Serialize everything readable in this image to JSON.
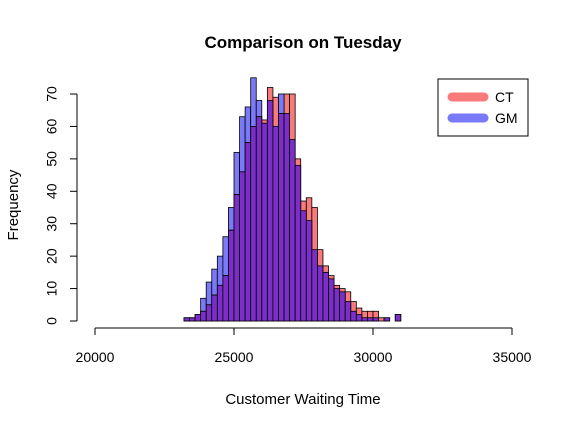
{
  "chart_data": {
    "type": "bar",
    "subtype": "overlaid-histogram",
    "title": "Comparison on Tuesday",
    "xlabel": "Customer Waiting Time",
    "ylabel": "Frequency",
    "xlim": [
      20000,
      35000
    ],
    "ylim": [
      0,
      70
    ],
    "xticks": [
      20000,
      25000,
      30000,
      35000
    ],
    "yticks": [
      0,
      10,
      20,
      30,
      40,
      50,
      60,
      70
    ],
    "bin_width": 200,
    "grid": false,
    "legend": {
      "position": "top-right",
      "entries": [
        {
          "label": "CT",
          "color": "#f87a7a"
        },
        {
          "label": "GM",
          "color": "#7a7af8"
        }
      ]
    },
    "overlap_color": "#7b2fc8",
    "series": [
      {
        "name": "CT",
        "color": "#f87a7a",
        "bins": [
          {
            "x0": 23200,
            "x1": 23400,
            "count": 1
          },
          {
            "x0": 23400,
            "x1": 23600,
            "count": 1
          },
          {
            "x0": 23600,
            "x1": 23800,
            "count": 2
          },
          {
            "x0": 23800,
            "x1": 24000,
            "count": 3
          },
          {
            "x0": 24000,
            "x1": 24200,
            "count": 5
          },
          {
            "x0": 24200,
            "x1": 24400,
            "count": 8
          },
          {
            "x0": 24400,
            "x1": 24600,
            "count": 11
          },
          {
            "x0": 24600,
            "x1": 24800,
            "count": 14
          },
          {
            "x0": 24800,
            "x1": 25000,
            "count": 28
          },
          {
            "x0": 25000,
            "x1": 25200,
            "count": 39
          },
          {
            "x0": 25200,
            "x1": 25400,
            "count": 46
          },
          {
            "x0": 25400,
            "x1": 25600,
            "count": 55
          },
          {
            "x0": 25600,
            "x1": 25800,
            "count": 60
          },
          {
            "x0": 25800,
            "x1": 26000,
            "count": 63
          },
          {
            "x0": 26000,
            "x1": 26200,
            "count": 62
          },
          {
            "x0": 26200,
            "x1": 26400,
            "count": 72
          },
          {
            "x0": 26400,
            "x1": 26600,
            "count": 69
          },
          {
            "x0": 26600,
            "x1": 26800,
            "count": 64
          },
          {
            "x0": 26800,
            "x1": 27000,
            "count": 70
          },
          {
            "x0": 27000,
            "x1": 27200,
            "count": 70
          },
          {
            "x0": 27200,
            "x1": 27400,
            "count": 50
          },
          {
            "x0": 27400,
            "x1": 27600,
            "count": 37
          },
          {
            "x0": 27600,
            "x1": 27800,
            "count": 38
          },
          {
            "x0": 27800,
            "x1": 28000,
            "count": 35
          },
          {
            "x0": 28000,
            "x1": 28200,
            "count": 22
          },
          {
            "x0": 28200,
            "x1": 28400,
            "count": 17
          },
          {
            "x0": 28400,
            "x1": 28600,
            "count": 14
          },
          {
            "x0": 28600,
            "x1": 28800,
            "count": 11
          },
          {
            "x0": 28800,
            "x1": 29000,
            "count": 10
          },
          {
            "x0": 29000,
            "x1": 29200,
            "count": 9
          },
          {
            "x0": 29200,
            "x1": 29400,
            "count": 6
          },
          {
            "x0": 29400,
            "x1": 29600,
            "count": 4
          },
          {
            "x0": 29600,
            "x1": 29800,
            "count": 3
          },
          {
            "x0": 29800,
            "x1": 30000,
            "count": 3
          },
          {
            "x0": 30000,
            "x1": 30200,
            "count": 3
          },
          {
            "x0": 30200,
            "x1": 30400,
            "count": 1
          },
          {
            "x0": 30400,
            "x1": 30600,
            "count": 1
          },
          {
            "x0": 30600,
            "x1": 30800,
            "count": 0
          },
          {
            "x0": 30800,
            "x1": 31000,
            "count": 2
          }
        ]
      },
      {
        "name": "GM",
        "color": "#7a7af8",
        "bins": [
          {
            "x0": 23200,
            "x1": 23400,
            "count": 1
          },
          {
            "x0": 23400,
            "x1": 23600,
            "count": 1
          },
          {
            "x0": 23600,
            "x1": 23800,
            "count": 2
          },
          {
            "x0": 23800,
            "x1": 24000,
            "count": 7
          },
          {
            "x0": 24000,
            "x1": 24200,
            "count": 12
          },
          {
            "x0": 24200,
            "x1": 24400,
            "count": 16
          },
          {
            "x0": 24400,
            "x1": 24600,
            "count": 20
          },
          {
            "x0": 24600,
            "x1": 24800,
            "count": 26
          },
          {
            "x0": 24800,
            "x1": 25000,
            "count": 35
          },
          {
            "x0": 25000,
            "x1": 25200,
            "count": 52
          },
          {
            "x0": 25200,
            "x1": 25400,
            "count": 63
          },
          {
            "x0": 25400,
            "x1": 25600,
            "count": 66
          },
          {
            "x0": 25600,
            "x1": 25800,
            "count": 75
          },
          {
            "x0": 25800,
            "x1": 26000,
            "count": 68
          },
          {
            "x0": 26000,
            "x1": 26200,
            "count": 61
          },
          {
            "x0": 26200,
            "x1": 26400,
            "count": 68
          },
          {
            "x0": 26400,
            "x1": 26600,
            "count": 60
          },
          {
            "x0": 26600,
            "x1": 26800,
            "count": 70
          },
          {
            "x0": 26800,
            "x1": 27000,
            "count": 64
          },
          {
            "x0": 27000,
            "x1": 27200,
            "count": 56
          },
          {
            "x0": 27200,
            "x1": 27400,
            "count": 48
          },
          {
            "x0": 27400,
            "x1": 27600,
            "count": 34
          },
          {
            "x0": 27600,
            "x1": 27800,
            "count": 31
          },
          {
            "x0": 27800,
            "x1": 28000,
            "count": 22
          },
          {
            "x0": 28000,
            "x1": 28200,
            "count": 17
          },
          {
            "x0": 28200,
            "x1": 28400,
            "count": 15
          },
          {
            "x0": 28400,
            "x1": 28600,
            "count": 13
          },
          {
            "x0": 28600,
            "x1": 28800,
            "count": 10
          },
          {
            "x0": 28800,
            "x1": 29000,
            "count": 9
          },
          {
            "x0": 29000,
            "x1": 29200,
            "count": 6
          },
          {
            "x0": 29200,
            "x1": 29400,
            "count": 3
          },
          {
            "x0": 29400,
            "x1": 29600,
            "count": 2
          },
          {
            "x0": 29600,
            "x1": 29800,
            "count": 1
          },
          {
            "x0": 29800,
            "x1": 30000,
            "count": 1
          },
          {
            "x0": 30000,
            "x1": 30200,
            "count": 1
          },
          {
            "x0": 30200,
            "x1": 30400,
            "count": 0
          },
          {
            "x0": 30400,
            "x1": 30600,
            "count": 1
          },
          {
            "x0": 30600,
            "x1": 30800,
            "count": 0
          },
          {
            "x0": 30800,
            "x1": 31000,
            "count": 2
          }
        ]
      }
    ]
  }
}
